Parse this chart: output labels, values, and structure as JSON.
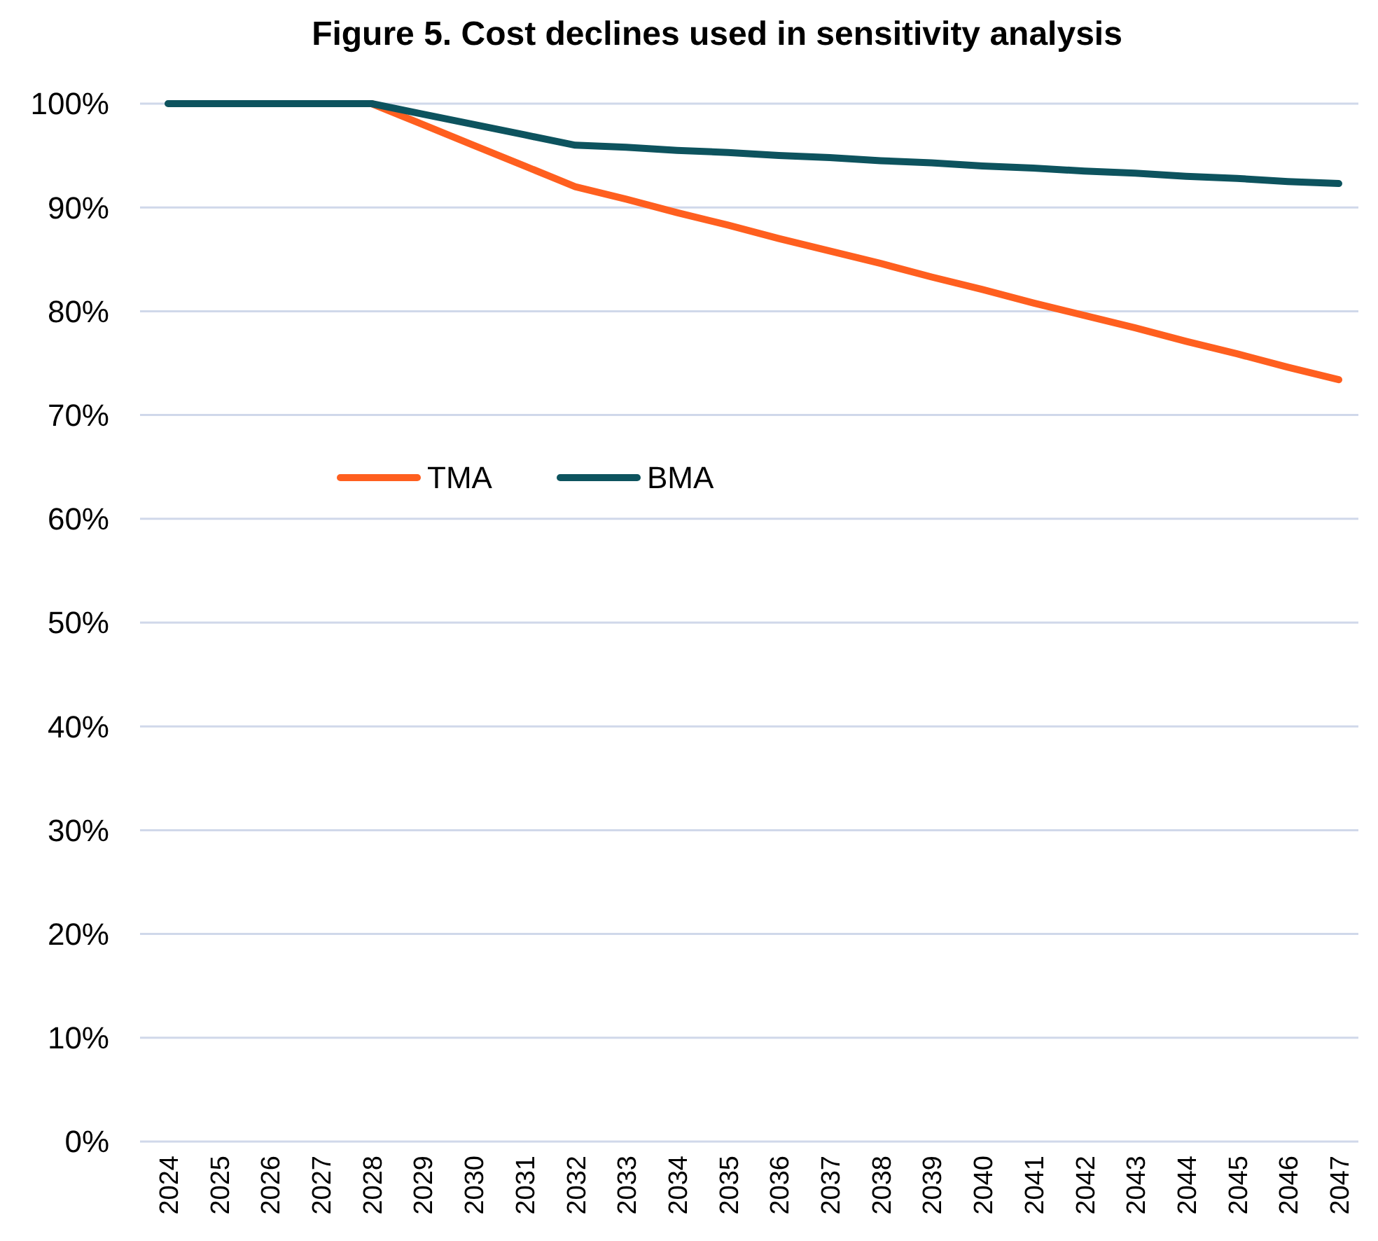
{
  "chart_data": {
    "type": "line",
    "title": "Figure 5. Cost declines used in sensitivity analysis",
    "categories": [
      "2024",
      "2025",
      "2026",
      "2027",
      "2028",
      "2029",
      "2030",
      "2031",
      "2032",
      "2033",
      "2034",
      "2035",
      "2036",
      "2037",
      "2038",
      "2039",
      "2040",
      "2041",
      "2042",
      "2043",
      "2044",
      "2045",
      "2046",
      "2047"
    ],
    "series": [
      {
        "name": "TMA",
        "color": "#ff5f1f",
        "values": [
          null,
          null,
          null,
          null,
          100,
          98,
          96,
          94,
          92,
          90.8,
          89.5,
          88.3,
          87,
          85.8,
          84.6,
          83.3,
          82.1,
          80.8,
          79.6,
          78.4,
          77.1,
          75.9,
          74.6,
          73.4
        ]
      },
      {
        "name": "BMA",
        "color": "#0d535e",
        "values": [
          100,
          100,
          100,
          100,
          100,
          99,
          98,
          97,
          96,
          95.8,
          95.5,
          95.3,
          95,
          94.8,
          94.5,
          94.3,
          94,
          93.8,
          93.5,
          93.3,
          93,
          92.8,
          92.5,
          92.3
        ]
      }
    ],
    "ylim": [
      0,
      100
    ],
    "yticks": [
      {
        "value": 0,
        "label": "0%"
      },
      {
        "value": 10,
        "label": "10%"
      },
      {
        "value": 20,
        "label": "20%"
      },
      {
        "value": 30,
        "label": "30%"
      },
      {
        "value": 40,
        "label": "40%"
      },
      {
        "value": 50,
        "label": "50%"
      },
      {
        "value": 60,
        "label": "60%"
      },
      {
        "value": 70,
        "label": "70%"
      },
      {
        "value": 80,
        "label": "80%"
      },
      {
        "value": 90,
        "label": "90%"
      },
      {
        "value": 100,
        "label": "100%"
      }
    ],
    "grid": "y",
    "legend": "center left",
    "marker": "none",
    "line_style": "solid"
  }
}
